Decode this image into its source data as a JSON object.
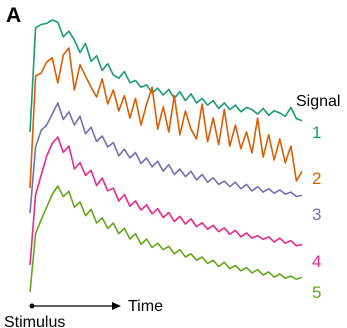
{
  "panel_label": "A",
  "chart_data": {
    "type": "line",
    "title": "",
    "xlabel": "Time",
    "ylabel": "",
    "stimulus_label": "Stimulus",
    "legend_title": "Signal",
    "grid": false,
    "legend_placement": "right",
    "note": "",
    "series": [
      {
        "name": "1",
        "color": "#1a9a78",
        "values": [
          0.0,
          0.93,
          0.96,
          0.97,
          1.0,
          0.98,
          0.85,
          0.9,
          0.82,
          0.71,
          0.79,
          0.63,
          0.68,
          0.55,
          0.61,
          0.51,
          0.48,
          0.54,
          0.44,
          0.46,
          0.4,
          0.42,
          0.35,
          0.39,
          0.33,
          0.38,
          0.3,
          0.36,
          0.28,
          0.34,
          0.26,
          0.3,
          0.24,
          0.28,
          0.21,
          0.26,
          0.2,
          0.24,
          0.18,
          0.22,
          0.2,
          0.16,
          0.21,
          0.15,
          0.19,
          0.17,
          0.14,
          0.22,
          0.12,
          0.1
        ]
      },
      {
        "name": "2",
        "color": "#d95f02",
        "values": [
          0.0,
          0.8,
          0.82,
          0.9,
          0.93,
          0.75,
          0.95,
          1.0,
          0.7,
          0.88,
          0.8,
          0.72,
          0.65,
          0.78,
          0.6,
          0.7,
          0.55,
          0.66,
          0.5,
          0.64,
          0.45,
          0.6,
          0.72,
          0.42,
          0.58,
          0.4,
          0.66,
          0.38,
          0.55,
          0.42,
          0.35,
          0.6,
          0.33,
          0.5,
          0.31,
          0.56,
          0.3,
          0.45,
          0.28,
          0.4,
          0.25,
          0.5,
          0.22,
          0.38,
          0.2,
          0.35,
          0.18,
          0.3,
          0.05,
          0.12
        ]
      },
      {
        "name": "3",
        "color": "#7570b3",
        "values": [
          0.0,
          0.6,
          0.75,
          0.8,
          0.9,
          1.0,
          0.85,
          0.92,
          0.8,
          0.88,
          0.72,
          0.78,
          0.65,
          0.7,
          0.6,
          0.64,
          0.52,
          0.58,
          0.5,
          0.55,
          0.45,
          0.5,
          0.42,
          0.47,
          0.38,
          0.44,
          0.35,
          0.4,
          0.33,
          0.38,
          0.3,
          0.35,
          0.28,
          0.32,
          0.26,
          0.29,
          0.24,
          0.28,
          0.22,
          0.26,
          0.2,
          0.24,
          0.19,
          0.22,
          0.18,
          0.21,
          0.17,
          0.19,
          0.15,
          0.16
        ]
      },
      {
        "name": "4",
        "color": "#e7298a",
        "values": [
          0.0,
          0.55,
          0.7,
          0.85,
          0.95,
          1.0,
          0.88,
          0.93,
          0.75,
          0.8,
          0.7,
          0.74,
          0.62,
          0.68,
          0.58,
          0.6,
          0.5,
          0.55,
          0.46,
          0.5,
          0.43,
          0.47,
          0.4,
          0.44,
          0.37,
          0.41,
          0.34,
          0.38,
          0.32,
          0.36,
          0.3,
          0.33,
          0.28,
          0.31,
          0.26,
          0.29,
          0.24,
          0.27,
          0.22,
          0.25,
          0.21,
          0.23,
          0.2,
          0.22,
          0.18,
          0.21,
          0.17,
          0.19,
          0.15,
          0.16
        ]
      },
      {
        "name": "5",
        "color": "#66a61e",
        "values": [
          0.0,
          0.55,
          0.68,
          0.8,
          0.92,
          1.0,
          0.9,
          0.95,
          0.8,
          0.85,
          0.72,
          0.78,
          0.65,
          0.7,
          0.6,
          0.65,
          0.55,
          0.6,
          0.5,
          0.55,
          0.45,
          0.5,
          0.42,
          0.46,
          0.4,
          0.43,
          0.36,
          0.4,
          0.33,
          0.36,
          0.3,
          0.33,
          0.27,
          0.3,
          0.24,
          0.28,
          0.22,
          0.25,
          0.2,
          0.23,
          0.18,
          0.21,
          0.16,
          0.19,
          0.14,
          0.17,
          0.13,
          0.15,
          0.12,
          0.14
        ]
      }
    ]
  }
}
